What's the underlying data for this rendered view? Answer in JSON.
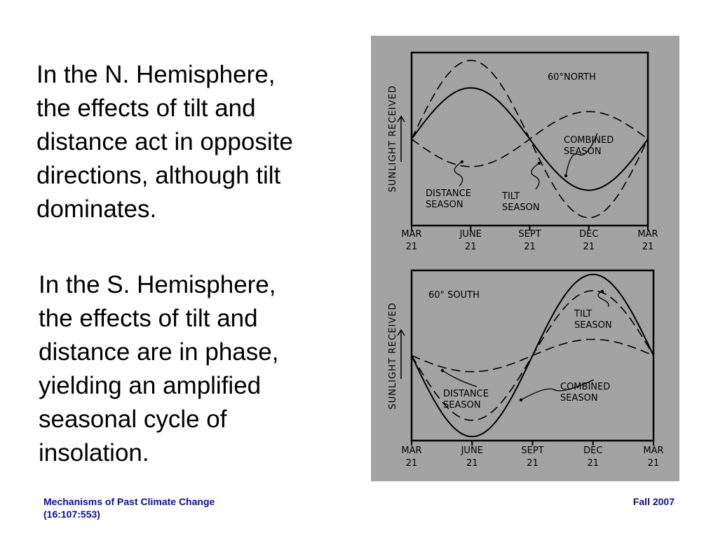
{
  "text": {
    "north_paragraph": "In the N. Hemisphere,\nthe effects of tilt and\ndistance act in opposite\ndirections, although tilt\ndominates.",
    "south_paragraph": "In the S. Hemisphere,\nthe effects of tilt and\ndistance are in phase,\nyielding an amplified\nseasonal cycle of\ninsolation."
  },
  "footer": {
    "left": "Mechanisms of Past Climate Change\n(16:107:553)",
    "right": "Fall 2007"
  },
  "colors": {
    "figure_background": "#a3a3a3",
    "footer_text": "#0b0ba8",
    "ink": "#000000"
  },
  "chart_data": [
    {
      "type": "line",
      "title": "60°NORTH",
      "ylabel": "SUNLIGHT RECEIVED",
      "x_tick_labels": [
        [
          "MAR",
          "21"
        ],
        [
          "JUNE",
          "21"
        ],
        [
          "SEPT",
          "21"
        ],
        [
          "DEC",
          "21"
        ],
        [
          "MAR",
          "21"
        ]
      ],
      "x": [
        0,
        0.25,
        0.5,
        0.75,
        1
      ],
      "ylim": [
        -1.1,
        1.1
      ],
      "series": [
        {
          "name": "DISTANCE SEASON",
          "style": "dashed",
          "values": [
            0,
            -0.35,
            0,
            0.35,
            0
          ]
        },
        {
          "name": "TILT SEASON",
          "style": "dashed",
          "values": [
            0,
            1.0,
            0,
            -1.0,
            0
          ]
        },
        {
          "name": "COMBINED SEASON",
          "style": "solid",
          "values": [
            0,
            0.65,
            0,
            -0.65,
            0
          ]
        }
      ]
    },
    {
      "type": "line",
      "title": "60° SOUTH",
      "ylabel": "SUNLIGHT RECEIVED",
      "x_tick_labels": [
        [
          "MAR",
          "21"
        ],
        [
          "JUNE",
          "21"
        ],
        [
          "SEPT",
          "21"
        ],
        [
          "DEC",
          "21"
        ],
        [
          "MAR",
          "21"
        ]
      ],
      "x": [
        0,
        0.25,
        0.5,
        0.75,
        1
      ],
      "ylim": [
        -1.05,
        1.05
      ],
      "series": [
        {
          "name": "DISTANCE SEASON",
          "style": "dashed",
          "values": [
            0,
            -0.2,
            0,
            0.2,
            0
          ]
        },
        {
          "name": "TILT SEASON",
          "style": "dashed",
          "values": [
            0,
            -0.8,
            0,
            0.8,
            0
          ]
        },
        {
          "name": "COMBINED SEASON",
          "style": "solid",
          "values": [
            0,
            -1.0,
            0,
            1.0,
            0
          ]
        }
      ]
    }
  ]
}
